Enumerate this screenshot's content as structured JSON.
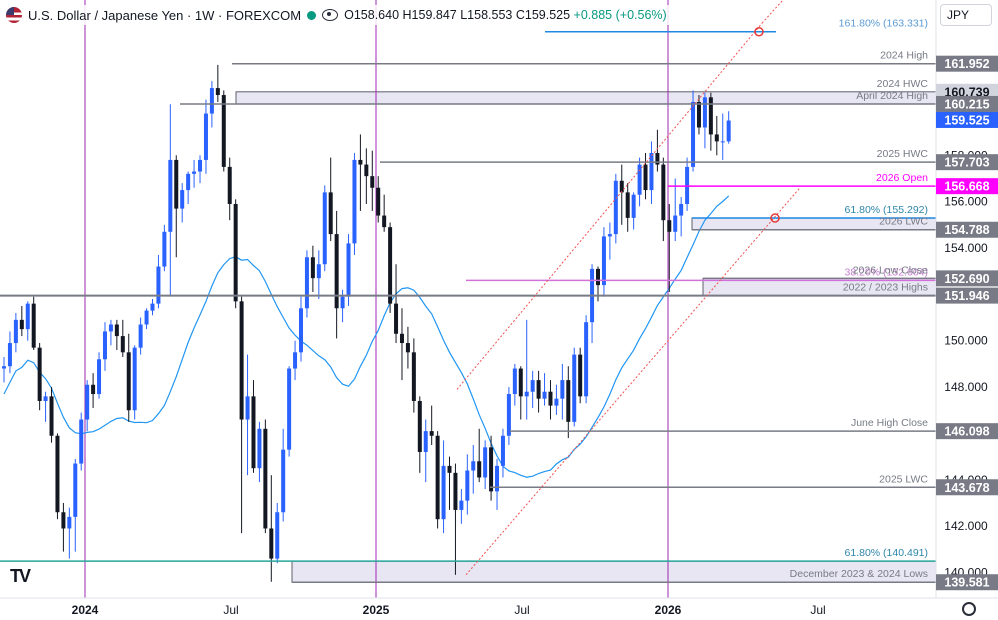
{
  "header": {
    "title": "U.S. Dollar / Japanese Yen · 1W · FOREXCOM",
    "open": "O158.640",
    "high": "H159.847",
    "low": "L158.553",
    "close": "C159.525",
    "change": "+0.885 (+0.56%)"
  },
  "currency_button": "JPY",
  "chart_data": {
    "type": "candlestick",
    "symbol": "USDJPY",
    "timeframe": "1W",
    "ylim": [
      138.9,
      164.7
    ],
    "x_axis_labels": [
      "2024",
      "Jul",
      "2025",
      "Jul",
      "2026",
      "Jul"
    ],
    "y_ticks": [
      140.0,
      142.0,
      144.0,
      146.0,
      148.0,
      150.0,
      154.0,
      156.0,
      158.0,
      160.0
    ],
    "price_labels": [
      {
        "value": 161.952,
        "text": "161.952",
        "color": "#787b86"
      },
      {
        "value": 160.739,
        "text": "160.739",
        "color": "#d1d4dc"
      },
      {
        "value": 160.215,
        "text": "160.215",
        "color": "#787b86"
      },
      {
        "value": 159.525,
        "text": "159.525",
        "color": "#2962ff"
      },
      {
        "value": 157.703,
        "text": "157.703",
        "color": "#787b86"
      },
      {
        "value": 156.668,
        "text": "156.668",
        "color": "#ff00ff"
      },
      {
        "value": 154.788,
        "text": "154.788",
        "color": "#787b86"
      },
      {
        "value": 152.69,
        "text": "152.690",
        "color": "#787b86"
      },
      {
        "value": 151.946,
        "text": "151.946",
        "color": "#787b86"
      },
      {
        "value": 146.098,
        "text": "146.098",
        "color": "#787b86"
      },
      {
        "value": 143.678,
        "text": "143.678",
        "color": "#787b86"
      },
      {
        "value": 139.581,
        "text": "139.581",
        "color": "#787b86"
      }
    ],
    "level_annotations": [
      {
        "text": "161.80% (163.331)",
        "value": 163.331,
        "color": "#5b9bd5"
      },
      {
        "text": "2024 High",
        "value": 161.952,
        "color": "#787b86"
      },
      {
        "text": "2024 HWC",
        "value": 160.739,
        "color": "#787b86"
      },
      {
        "text": "April 2024 High",
        "value": 160.215,
        "color": "#787b86"
      },
      {
        "text": "2025 HWC",
        "value": 157.703,
        "color": "#787b86"
      },
      {
        "text": "2026 Open",
        "value": 156.668,
        "color": "#ff00ff"
      },
      {
        "text": "61.80% (155.292)",
        "value": 155.292,
        "color": "#2e86ab"
      },
      {
        "text": "2026 LWC",
        "value": 154.788,
        "color": "#787b86"
      },
      {
        "text": "38.20% (152.604)",
        "value": 152.604,
        "color": "#c77dd1"
      },
      {
        "text": "2026 Low Close",
        "value": 152.69,
        "color": "#787b86"
      },
      {
        "text": "2022 / 2023 Highs",
        "value": 151.946,
        "color": "#787b86"
      },
      {
        "text": "June High Close",
        "value": 146.098,
        "color": "#787b86"
      },
      {
        "text": "2025 LWC",
        "value": 143.678,
        "color": "#787b86"
      },
      {
        "text": "61.80% (140.491)",
        "value": 140.491,
        "color": "#2e86ab"
      },
      {
        "text": "December 2023 & 2024 Lows",
        "value": 139.581,
        "color": "#787b86"
      }
    ],
    "candles": [
      [
        148.8,
        149.3,
        148.2,
        148.9
      ],
      [
        148.9,
        150.4,
        148.6,
        149.9
      ],
      [
        149.9,
        151.2,
        149.5,
        150.9
      ],
      [
        150.9,
        151.5,
        150.2,
        150.5
      ],
      [
        150.5,
        151.7,
        150.0,
        151.6
      ],
      [
        151.6,
        151.9,
        149.6,
        149.7
      ],
      [
        149.7,
        149.9,
        147.0,
        147.4
      ],
      [
        147.4,
        147.8,
        146.5,
        147.6
      ],
      [
        147.6,
        148.0,
        145.6,
        145.9
      ],
      [
        145.9,
        146.0,
        142.3,
        142.6
      ],
      [
        142.6,
        143.0,
        140.9,
        141.9
      ],
      [
        141.9,
        142.8,
        140.6,
        142.4
      ],
      [
        142.4,
        144.9,
        140.9,
        144.7
      ],
      [
        144.7,
        146.9,
        144.4,
        146.6
      ],
      [
        146.6,
        148.3,
        146.1,
        148.1
      ],
      [
        148.1,
        148.6,
        147.1,
        147.7
      ],
      [
        147.7,
        149.5,
        147.5,
        149.2
      ],
      [
        149.2,
        150.8,
        148.7,
        150.4
      ],
      [
        150.4,
        150.9,
        149.8,
        150.7
      ],
      [
        150.7,
        150.9,
        149.6,
        150.2
      ],
      [
        150.2,
        150.9,
        149.3,
        149.5
      ],
      [
        149.5,
        150.3,
        146.5,
        147.0
      ],
      [
        147.0,
        149.8,
        146.6,
        149.7
      ],
      [
        149.7,
        151.0,
        149.4,
        150.7
      ],
      [
        150.7,
        151.4,
        150.5,
        151.3
      ],
      [
        151.3,
        151.8,
        151.1,
        151.6
      ],
      [
        151.6,
        153.7,
        151.4,
        153.2
      ],
      [
        153.2,
        155.0,
        153.0,
        154.7
      ],
      [
        154.7,
        160.2,
        151.9,
        157.8
      ],
      [
        157.8,
        158.0,
        153.6,
        155.7
      ],
      [
        155.7,
        156.8,
        155.1,
        156.5
      ],
      [
        156.5,
        157.3,
        155.9,
        157.2
      ],
      [
        157.2,
        157.8,
        156.6,
        157.3
      ],
      [
        157.3,
        158.0,
        156.8,
        157.8
      ],
      [
        157.8,
        160.4,
        157.2,
        159.8
      ],
      [
        159.8,
        161.2,
        159.2,
        160.9
      ],
      [
        160.9,
        161.9,
        160.3,
        160.6
      ],
      [
        160.6,
        160.8,
        157.3,
        157.5
      ],
      [
        157.5,
        157.9,
        155.2,
        155.9
      ],
      [
        155.9,
        156.1,
        151.4,
        151.7
      ],
      [
        151.7,
        151.9,
        141.7,
        146.6
      ],
      [
        146.6,
        149.4,
        144.2,
        147.6
      ],
      [
        147.6,
        148.3,
        144.3,
        144.5
      ],
      [
        144.5,
        146.5,
        143.9,
        146.2
      ],
      [
        146.2,
        146.6,
        141.7,
        141.9
      ],
      [
        141.9,
        144.2,
        139.6,
        140.6
      ],
      [
        140.6,
        143.0,
        140.4,
        142.6
      ],
      [
        142.6,
        146.2,
        142.2,
        145.3
      ],
      [
        145.3,
        148.9,
        145.0,
        148.8
      ],
      [
        148.8,
        150.0,
        148.3,
        149.5
      ],
      [
        149.5,
        151.9,
        149.1,
        151.4
      ],
      [
        151.4,
        153.9,
        151.0,
        153.6
      ],
      [
        153.6,
        154.1,
        152.1,
        152.7
      ],
      [
        152.7,
        153.9,
        151.8,
        153.3
      ],
      [
        153.3,
        156.7,
        153.0,
        156.4
      ],
      [
        156.4,
        157.9,
        154.3,
        154.6
      ],
      [
        154.6,
        155.6,
        150.1,
        151.4
      ],
      [
        151.4,
        152.2,
        150.8,
        151.9
      ],
      [
        151.9,
        154.6,
        151.5,
        154.2
      ],
      [
        154.2,
        158.1,
        153.7,
        157.8
      ],
      [
        157.8,
        158.9,
        155.6,
        157.6
      ],
      [
        157.6,
        158.3,
        155.9,
        157.1
      ],
      [
        157.1,
        158.2,
        155.6,
        156.6
      ],
      [
        156.6,
        157.1,
        155.1,
        155.4
      ],
      [
        155.4,
        156.3,
        154.7,
        154.9
      ],
      [
        154.9,
        155.1,
        151.2,
        151.6
      ],
      [
        151.6,
        153.3,
        149.9,
        150.3
      ],
      [
        150.3,
        151.4,
        148.3,
        149.9
      ],
      [
        149.9,
        150.6,
        148.8,
        149.5
      ],
      [
        149.5,
        150.1,
        146.9,
        147.4
      ],
      [
        147.4,
        147.6,
        144.3,
        145.2
      ],
      [
        145.2,
        146.6,
        143.9,
        146.1
      ],
      [
        146.1,
        147.2,
        145.5,
        145.9
      ],
      [
        145.9,
        146.1,
        141.9,
        142.3
      ],
      [
        142.3,
        145.7,
        141.7,
        144.6
      ],
      [
        144.6,
        145.0,
        142.7,
        144.3
      ],
      [
        144.3,
        144.7,
        139.9,
        142.7
      ],
      [
        142.7,
        143.6,
        142.1,
        143.1
      ],
      [
        143.1,
        145.1,
        142.5,
        144.4
      ],
      [
        144.4,
        145.5,
        143.4,
        144.8
      ],
      [
        144.8,
        146.2,
        143.9,
        144.1
      ],
      [
        144.1,
        145.7,
        143.6,
        145.4
      ],
      [
        145.4,
        145.9,
        143.1,
        143.5
      ],
      [
        143.5,
        144.9,
        142.7,
        144.6
      ],
      [
        144.6,
        146.2,
        144.1,
        145.9
      ],
      [
        145.9,
        148.0,
        145.5,
        147.7
      ],
      [
        147.7,
        149.0,
        147.2,
        148.8
      ],
      [
        148.8,
        148.9,
        146.6,
        147.6
      ],
      [
        147.6,
        150.9,
        146.6,
        147.8
      ],
      [
        147.8,
        148.7,
        147.1,
        148.3
      ],
      [
        148.3,
        148.7,
        146.9,
        147.5
      ],
      [
        147.5,
        148.6,
        147.2,
        147.8
      ],
      [
        147.8,
        148.3,
        146.6,
        147.2
      ],
      [
        147.2,
        148.1,
        146.8,
        147.5
      ],
      [
        147.5,
        149.0,
        146.6,
        148.3
      ],
      [
        148.3,
        148.9,
        145.8,
        146.5
      ],
      [
        146.5,
        149.7,
        146.3,
        149.4
      ],
      [
        149.4,
        149.7,
        147.3,
        147.6
      ],
      [
        147.6,
        151.1,
        147.3,
        150.8
      ],
      [
        150.8,
        153.3,
        149.9,
        153.1
      ],
      [
        153.1,
        153.2,
        151.7,
        152.4
      ],
      [
        152.4,
        154.9,
        151.9,
        154.5
      ],
      [
        154.5,
        155.1,
        153.5,
        154.6
      ],
      [
        154.6,
        157.2,
        154.2,
        156.9
      ],
      [
        156.9,
        157.6,
        155.0,
        156.4
      ],
      [
        156.4,
        156.8,
        154.7,
        155.3
      ],
      [
        155.3,
        156.4,
        154.8,
        156.3
      ],
      [
        156.3,
        157.9,
        155.8,
        157.6
      ],
      [
        157.6,
        158.1,
        156.1,
        156.5
      ],
      [
        156.5,
        158.6,
        155.9,
        158.1
      ],
      [
        158.1,
        159.1,
        157.3,
        157.6
      ],
      [
        157.6,
        157.9,
        154.3,
        155.2
      ],
      [
        155.2,
        155.9,
        152.1,
        154.7
      ],
      [
        154.7,
        157.0,
        154.3,
        155.4
      ],
      [
        155.4,
        156.2,
        154.5,
        155.9
      ],
      [
        155.9,
        157.9,
        155.6,
        157.5
      ],
      [
        157.5,
        160.8,
        157.3,
        160.3
      ],
      [
        160.3,
        160.6,
        158.9,
        159.2
      ],
      [
        159.2,
        160.7,
        158.3,
        160.5
      ],
      [
        160.5,
        160.7,
        158.2,
        158.9
      ],
      [
        158.9,
        159.7,
        158.0,
        158.6
      ],
      [
        158.6,
        159.8,
        157.8,
        158.6
      ],
      [
        158.6,
        159.9,
        158.5,
        159.5
      ]
    ],
    "moving_average": {
      "color": "#2196f3"
    }
  }
}
